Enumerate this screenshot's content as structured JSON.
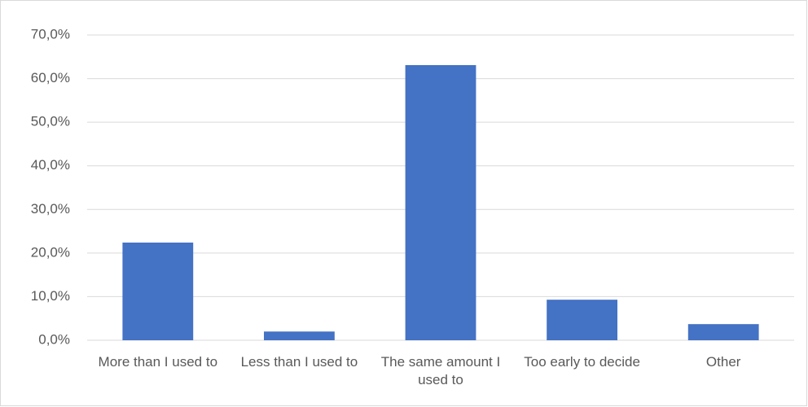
{
  "chart_data": {
    "type": "bar",
    "categories": [
      "More than I used to",
      "Less than I used to",
      "The same amount I used to",
      "Too early to decide",
      "Other"
    ],
    "values": [
      22.4,
      2.0,
      63.1,
      9.3,
      3.7
    ],
    "color": "#4472c4",
    "ylim": [
      0,
      70
    ],
    "yticks": [
      {
        "value": 0,
        "label": "0,0%"
      },
      {
        "value": 10,
        "label": "10,0%"
      },
      {
        "value": 20,
        "label": "20,0%"
      },
      {
        "value": 30,
        "label": "30,0%"
      },
      {
        "value": 40,
        "label": "40,0%"
      },
      {
        "value": 50,
        "label": "50,0%"
      },
      {
        "value": 60,
        "label": "60,0%"
      },
      {
        "value": 70,
        "label": "70,0%"
      }
    ],
    "grid": true
  }
}
